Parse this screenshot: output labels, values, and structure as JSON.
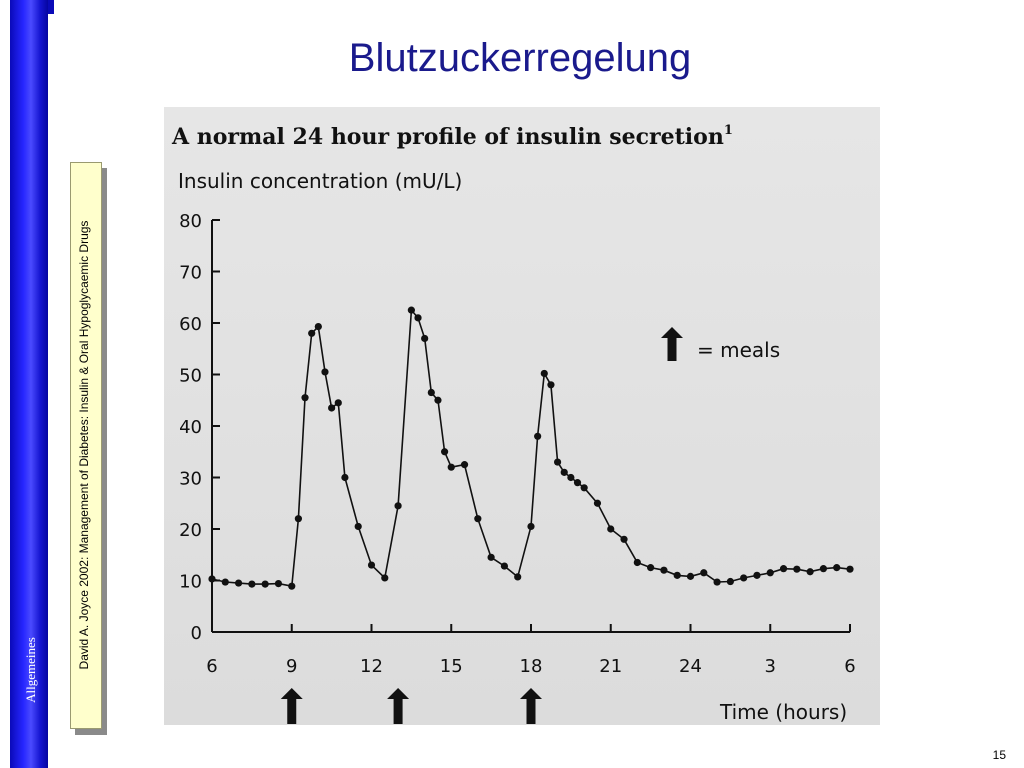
{
  "slide": {
    "title": "Blutzuckerregelung",
    "sidebar_label": "Allgemeines",
    "citation": "David A. Joyce 2002: Management of Diabetes:  Insulin & Oral Hypoglycaemic Drugs",
    "page_number": "15",
    "accent_color": "#1a1a8c",
    "sidebar_color": "#2626ff"
  },
  "chart_data": {
    "type": "line",
    "title": "A normal 24 hour profile of insulin secretion",
    "title_superscript": "1",
    "ylabel": "Insulin concentration (mU/L)",
    "xlabel": "Time (hours)",
    "ylim": [
      0,
      80
    ],
    "yticks": [
      0,
      10,
      20,
      30,
      40,
      50,
      60,
      70,
      80
    ],
    "xticks": [
      "6",
      "9",
      "12",
      "15",
      "18",
      "21",
      "24",
      "3",
      "6"
    ],
    "xlim": [
      0,
      24
    ],
    "grid": false,
    "legend": {
      "marker": "arrow",
      "label": "= meals",
      "placement": "top-right"
    },
    "meal_times": [
      3,
      7,
      12
    ],
    "series": [
      {
        "x": [
          0,
          0.5,
          1,
          1.5,
          2,
          2.5,
          3,
          3.25,
          3.5,
          3.75,
          4,
          4.25,
          4.5,
          4.75,
          5,
          5.5,
          6,
          6.5,
          7,
          7.5,
          7.75,
          8,
          8.25,
          8.5,
          8.75,
          9,
          9.5,
          10,
          10.5,
          11,
          11.5,
          12,
          12.25,
          12.5,
          12.75,
          13,
          13.25,
          13.5,
          13.75,
          14,
          14.5,
          15,
          15.5,
          16,
          16.5,
          17,
          17.5,
          18,
          18.5,
          19,
          19.5,
          20,
          20.5,
          21,
          21.5,
          22,
          22.5,
          23,
          23.5,
          24
        ],
        "y": [
          10.3,
          9.7,
          9.5,
          9.3,
          9.3,
          9.4,
          8.9,
          22,
          45.5,
          58,
          59.3,
          50.5,
          43.5,
          44.5,
          30,
          20.5,
          13,
          10.5,
          24.5,
          62.5,
          61,
          57,
          46.5,
          45,
          35,
          32,
          32.5,
          22,
          14.5,
          12.8,
          10.7,
          20.5,
          38,
          50.2,
          48,
          33,
          31,
          30,
          29,
          28,
          25,
          20,
          18,
          13.5,
          12.5,
          12,
          11,
          10.8,
          11.5,
          9.7,
          9.8,
          10.5,
          11,
          11.5,
          12.3,
          12.2,
          11.7,
          12.3,
          12.5,
          12.2
        ]
      }
    ]
  }
}
